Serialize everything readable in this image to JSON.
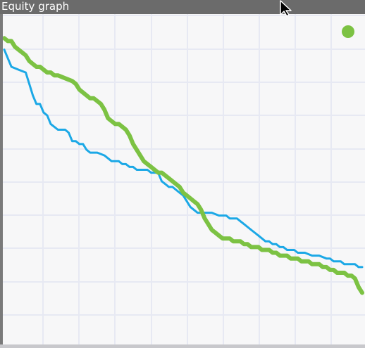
{
  "window": {
    "title": "Equity graph"
  },
  "colors": {
    "series_blue": "#1ba8e6",
    "series_green": "#7cc243",
    "grid": "#e7e9f3",
    "background": "#f7f7f8",
    "titlebar": "#6b6b6b"
  },
  "cursor": {
    "icon": "arrow-cursor-icon"
  },
  "legend": {
    "marker_color": "#7cc243",
    "placement": "top-right"
  },
  "chart_data": {
    "type": "line",
    "title": "",
    "xlabel": "",
    "ylabel": "",
    "xlim": [
      0,
      100
    ],
    "ylim": [
      0,
      100
    ],
    "grid": true,
    "legend_placement": "top-right",
    "series": [
      {
        "color": "#1ba8e6",
        "width": 3,
        "x": [
          0,
          1,
          2,
          4,
          6,
          7,
          8,
          9,
          10,
          11,
          12,
          13,
          14,
          15,
          17,
          18,
          19,
          20,
          21,
          22,
          23,
          24,
          26,
          28,
          30,
          32,
          33,
          34,
          35,
          36,
          37,
          39,
          40,
          41,
          42,
          43,
          44,
          45,
          46,
          47,
          48,
          49,
          50,
          52,
          54,
          56,
          58,
          60,
          62,
          63,
          64,
          65,
          66,
          67,
          68,
          69,
          70,
          71,
          72,
          73,
          74,
          75,
          76,
          77,
          78,
          79,
          80,
          81,
          82,
          83,
          84,
          86,
          88,
          90,
          91,
          92,
          93,
          94,
          95,
          96,
          97,
          98,
          99,
          100
        ],
        "y": [
          92,
          89,
          86,
          85,
          84,
          80,
          76,
          73,
          73,
          70,
          69,
          66,
          65,
          64,
          64,
          63,
          60,
          60,
          59,
          59,
          57,
          56,
          56,
          55,
          53,
          53,
          52,
          52,
          51,
          51,
          50,
          50,
          50,
          49,
          49,
          49,
          46,
          45,
          44,
          44,
          43,
          42,
          41,
          37,
          35,
          35,
          35,
          34,
          34,
          33,
          33,
          33,
          32,
          31,
          30,
          29,
          28,
          27,
          26,
          25,
          25,
          24,
          24,
          23,
          23,
          22,
          22,
          22,
          21,
          21,
          21,
          20,
          20,
          19,
          19,
          18,
          18,
          18,
          17,
          17,
          17,
          17,
          16,
          16
        ]
      },
      {
        "color": "#7cc243",
        "width": 6,
        "x": [
          0,
          1,
          2,
          3,
          4,
          5,
          6,
          7,
          8,
          9,
          10,
          11,
          12,
          13,
          14,
          15,
          17,
          19,
          20,
          21,
          22,
          23,
          24,
          25,
          26,
          27,
          28,
          29,
          30,
          31,
          32,
          33,
          34,
          35,
          36,
          37,
          38,
          39,
          40,
          41,
          42,
          43,
          44,
          45,
          46,
          47,
          48,
          49,
          50,
          51,
          52,
          53,
          54,
          55,
          56,
          57,
          58,
          59,
          60,
          61,
          62,
          63,
          64,
          65,
          66,
          67,
          68,
          69,
          70,
          71,
          72,
          73,
          74,
          75,
          76,
          77,
          78,
          79,
          80,
          81,
          82,
          83,
          84,
          85,
          86,
          87,
          88,
          89,
          90,
          91,
          92,
          93,
          94,
          95,
          96,
          97,
          98,
          99,
          100
        ],
        "y": [
          96,
          95,
          95,
          93,
          92,
          91,
          90,
          88,
          87,
          86,
          86,
          85,
          84,
          84,
          83,
          83,
          82,
          81,
          80,
          78,
          77,
          76,
          75,
          75,
          74,
          73,
          71,
          68,
          67,
          66,
          66,
          65,
          64,
          62,
          59,
          57,
          55,
          53,
          52,
          51,
          50,
          49,
          49,
          48,
          47,
          46,
          45,
          44,
          42,
          41,
          40,
          39,
          38,
          36,
          33,
          31,
          29,
          28,
          27,
          26,
          26,
          26,
          25,
          25,
          25,
          24,
          24,
          23,
          23,
          23,
          22,
          22,
          22,
          21,
          21,
          20,
          20,
          20,
          19,
          19,
          19,
          18,
          18,
          18,
          17,
          17,
          17,
          16,
          16,
          15,
          15,
          14,
          14,
          14,
          13,
          13,
          12,
          9,
          7
        ]
      }
    ]
  }
}
